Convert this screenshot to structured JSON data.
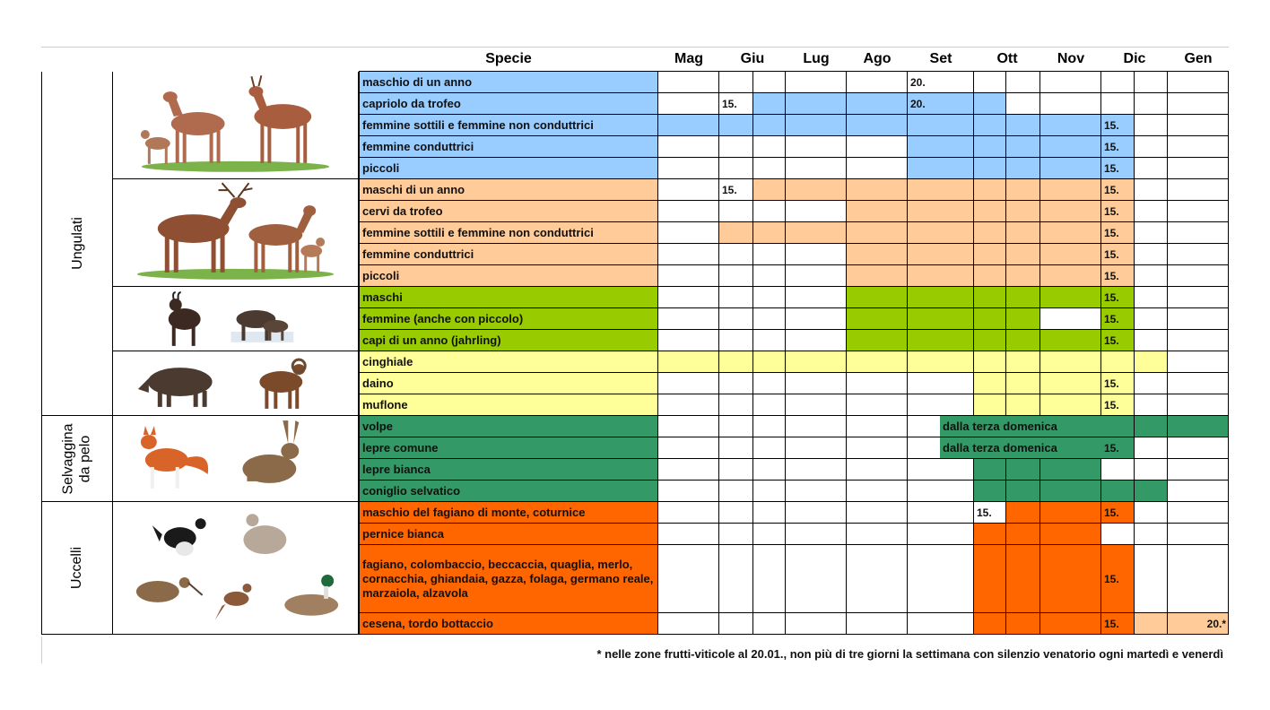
{
  "header": {
    "species": "Specie",
    "months": [
      "Mag",
      "Giu",
      "Lug",
      "Ago",
      "Set",
      "Ott",
      "Nov",
      "Dic",
      "Gen"
    ]
  },
  "groups": [
    {
      "label": "Ungulati"
    },
    {
      "label": "Selvaggina da pelo"
    },
    {
      "label": "Uccelli"
    }
  ],
  "images": [
    {
      "icon": "roe-deer-illustration"
    },
    {
      "icon": "red-deer-illustration"
    },
    {
      "icon": "chamois-illustration"
    },
    {
      "icon": "boar-mouflon-illustration"
    },
    {
      "icon": "fox-hare-illustration"
    },
    {
      "icon": "birds-illustration"
    }
  ],
  "colors": {
    "capriolo": "#99CCFF",
    "cervo": "#FFCC99",
    "camoscio": "#99CC00",
    "altri": "#FFFF99",
    "pelo": "#339966",
    "uccelli": "#FF6600"
  },
  "rows": [
    {
      "label": "maschio di un anno",
      "color": "capriolo",
      "fill": [
        false,
        false,
        false,
        false,
        false,
        false,
        false,
        false,
        false,
        false,
        false,
        false
      ],
      "values": [
        null,
        null,
        null,
        null,
        null,
        "20.",
        null,
        null,
        null,
        null,
        null,
        null
      ]
    },
    {
      "label": "capriolo da trofeo",
      "color": "capriolo",
      "fill": [
        false,
        false,
        true,
        true,
        true,
        true,
        true,
        false,
        false,
        false,
        false,
        false
      ],
      "values": [
        null,
        "15.",
        null,
        null,
        null,
        "20.",
        null,
        null,
        null,
        null,
        null,
        null
      ]
    },
    {
      "label": "femmine sottili e femmine non conduttrici",
      "color": "capriolo",
      "fill": [
        true,
        true,
        true,
        true,
        true,
        true,
        true,
        true,
        true,
        true,
        false,
        false
      ],
      "values": [
        null,
        null,
        null,
        null,
        null,
        null,
        null,
        null,
        null,
        "15.",
        null,
        null
      ]
    },
    {
      "label": "femmine conduttrici",
      "color": "capriolo",
      "fill": [
        false,
        false,
        false,
        false,
        false,
        true,
        true,
        true,
        true,
        true,
        false,
        false
      ],
      "values": [
        null,
        null,
        null,
        null,
        null,
        null,
        null,
        null,
        null,
        "15.",
        null,
        null
      ]
    },
    {
      "label": "piccoli",
      "color": "capriolo",
      "fill": [
        false,
        false,
        false,
        false,
        false,
        true,
        true,
        true,
        true,
        true,
        false,
        false
      ],
      "values": [
        null,
        null,
        null,
        null,
        null,
        null,
        null,
        null,
        null,
        "15.",
        null,
        null
      ]
    },
    {
      "label": "maschi di un anno",
      "color": "cervo",
      "fill": [
        false,
        false,
        true,
        true,
        true,
        true,
        true,
        true,
        true,
        true,
        false,
        false
      ],
      "values": [
        null,
        "15.",
        null,
        null,
        null,
        null,
        null,
        null,
        null,
        "15.",
        null,
        null
      ]
    },
    {
      "label": "cervi da trofeo",
      "color": "cervo",
      "fill": [
        false,
        false,
        false,
        false,
        true,
        true,
        true,
        true,
        true,
        true,
        false,
        false
      ],
      "values": [
        null,
        null,
        null,
        null,
        null,
        null,
        null,
        null,
        null,
        "15.",
        null,
        null
      ]
    },
    {
      "label": "femmine sottili e femmine non conduttrici",
      "color": "cervo",
      "fill": [
        false,
        true,
        true,
        true,
        true,
        true,
        true,
        true,
        true,
        true,
        false,
        false
      ],
      "values": [
        null,
        null,
        null,
        null,
        null,
        null,
        null,
        null,
        null,
        "15.",
        null,
        null
      ]
    },
    {
      "label": "femmine conduttrici",
      "color": "cervo",
      "fill": [
        false,
        false,
        false,
        false,
        true,
        true,
        true,
        true,
        true,
        true,
        false,
        false
      ],
      "values": [
        null,
        null,
        null,
        null,
        null,
        null,
        null,
        null,
        null,
        "15.",
        null,
        null
      ]
    },
    {
      "label": "piccoli",
      "color": "cervo",
      "fill": [
        false,
        false,
        false,
        false,
        true,
        true,
        true,
        true,
        true,
        true,
        false,
        false
      ],
      "values": [
        null,
        null,
        null,
        null,
        null,
        null,
        null,
        null,
        null,
        "15.",
        null,
        null
      ]
    },
    {
      "label": "maschi",
      "color": "camoscio",
      "fill": [
        false,
        false,
        false,
        false,
        true,
        true,
        true,
        true,
        true,
        true,
        false,
        false
      ],
      "values": [
        null,
        null,
        null,
        null,
        null,
        null,
        null,
        null,
        null,
        "15.",
        null,
        null
      ]
    },
    {
      "label": "femmine (anche con piccolo)",
      "color": "camoscio",
      "fill": [
        false,
        false,
        false,
        false,
        true,
        true,
        true,
        true,
        false,
        true,
        false,
        false
      ],
      "values": [
        null,
        null,
        null,
        null,
        null,
        null,
        null,
        null,
        null,
        "15.",
        null,
        null
      ]
    },
    {
      "label": "capi di un anno (jahrling)",
      "color": "camoscio",
      "fill": [
        false,
        false,
        false,
        false,
        true,
        true,
        true,
        true,
        true,
        true,
        false,
        false
      ],
      "values": [
        null,
        null,
        null,
        null,
        null,
        null,
        null,
        null,
        null,
        "15.",
        null,
        null
      ]
    },
    {
      "label": "cinghiale",
      "color": "altri",
      "fill": [
        true,
        true,
        true,
        true,
        true,
        true,
        true,
        true,
        true,
        true,
        true,
        false
      ],
      "values": [
        null,
        null,
        null,
        null,
        null,
        null,
        null,
        null,
        null,
        null,
        null,
        null
      ]
    },
    {
      "label": "daino",
      "color": "altri",
      "fill": [
        false,
        false,
        false,
        false,
        false,
        false,
        true,
        true,
        true,
        true,
        false,
        false
      ],
      "values": [
        null,
        null,
        null,
        null,
        null,
        null,
        null,
        null,
        null,
        "15.",
        null,
        null
      ]
    },
    {
      "label": "muflone",
      "color": "altri",
      "fill": [
        false,
        false,
        false,
        false,
        false,
        false,
        true,
        true,
        true,
        true,
        false,
        false
      ],
      "values": [
        null,
        null,
        null,
        null,
        null,
        null,
        null,
        null,
        null,
        "15.",
        null,
        null
      ]
    },
    {
      "label": "volpe",
      "color": "pelo",
      "fill": [
        false,
        false,
        false,
        false,
        false,
        false,
        true,
        true,
        true,
        true,
        true,
        true
      ],
      "values": [
        null,
        null,
        null,
        null,
        null,
        null,
        null,
        null,
        null,
        null,
        null,
        null
      ],
      "span": {
        "from": 5,
        "text": "dalla terza domenica"
      }
    },
    {
      "label": "lepre comune",
      "color": "pelo",
      "fill": [
        false,
        false,
        false,
        false,
        false,
        false,
        true,
        true,
        true,
        true,
        false,
        false
      ],
      "values": [
        null,
        null,
        null,
        null,
        null,
        null,
        null,
        null,
        null,
        "15.",
        null,
        null
      ],
      "span": {
        "from": 5,
        "text": "dalla terza domenica"
      }
    },
    {
      "label": "lepre bianca",
      "color": "pelo",
      "fill": [
        false,
        false,
        false,
        false,
        false,
        false,
        true,
        true,
        true,
        false,
        false,
        false
      ],
      "values": [
        null,
        null,
        null,
        null,
        null,
        null,
        null,
        null,
        null,
        null,
        null,
        null
      ]
    },
    {
      "label": "coniglio selvatico",
      "color": "pelo",
      "fill": [
        false,
        false,
        false,
        false,
        false,
        false,
        true,
        true,
        true,
        true,
        true,
        false
      ],
      "values": [
        null,
        null,
        null,
        null,
        null,
        null,
        null,
        null,
        null,
        null,
        null,
        null
      ]
    },
    {
      "label": "maschio del fagiano di monte, coturnice",
      "color": "uccelli",
      "fill": [
        false,
        false,
        false,
        false,
        false,
        false,
        false,
        true,
        true,
        true,
        false,
        false
      ],
      "values": [
        null,
        null,
        null,
        null,
        null,
        null,
        "15.",
        null,
        null,
        "15.",
        null,
        null
      ]
    },
    {
      "label": "pernice bianca",
      "color": "uccelli",
      "fill": [
        false,
        false,
        false,
        false,
        false,
        false,
        true,
        true,
        true,
        false,
        false,
        false
      ],
      "values": [
        null,
        null,
        null,
        null,
        null,
        null,
        null,
        null,
        null,
        null,
        null,
        null
      ]
    },
    {
      "label": "fagiano, colombaccio, beccaccia, quaglia, merlo, cornacchia, ghiandaia, gazza, folaga, germano reale, marzaiola, alzavola",
      "color": "uccelli",
      "fill": [
        false,
        false,
        false,
        false,
        false,
        false,
        true,
        true,
        true,
        true,
        false,
        false
      ],
      "values": [
        null,
        null,
        null,
        null,
        null,
        null,
        null,
        null,
        null,
        "15.",
        null,
        null
      ]
    },
    {
      "label": "cesena, tordo bottaccio",
      "color": "uccelli",
      "fill": [
        false,
        false,
        false,
        false,
        false,
        false,
        true,
        true,
        true,
        true,
        true,
        true
      ],
      "values": [
        null,
        null,
        null,
        null,
        null,
        null,
        null,
        null,
        null,
        "15.",
        null,
        "20.*"
      ],
      "fillColors": {
        "10": "#FFCC99",
        "11": "#FFCC99"
      }
    }
  ],
  "footnote": "* nelle zone frutti-viticole al 20.01., non più di tre giorni la settimana con silenzio venatorio ogni martedì e venerdì"
}
